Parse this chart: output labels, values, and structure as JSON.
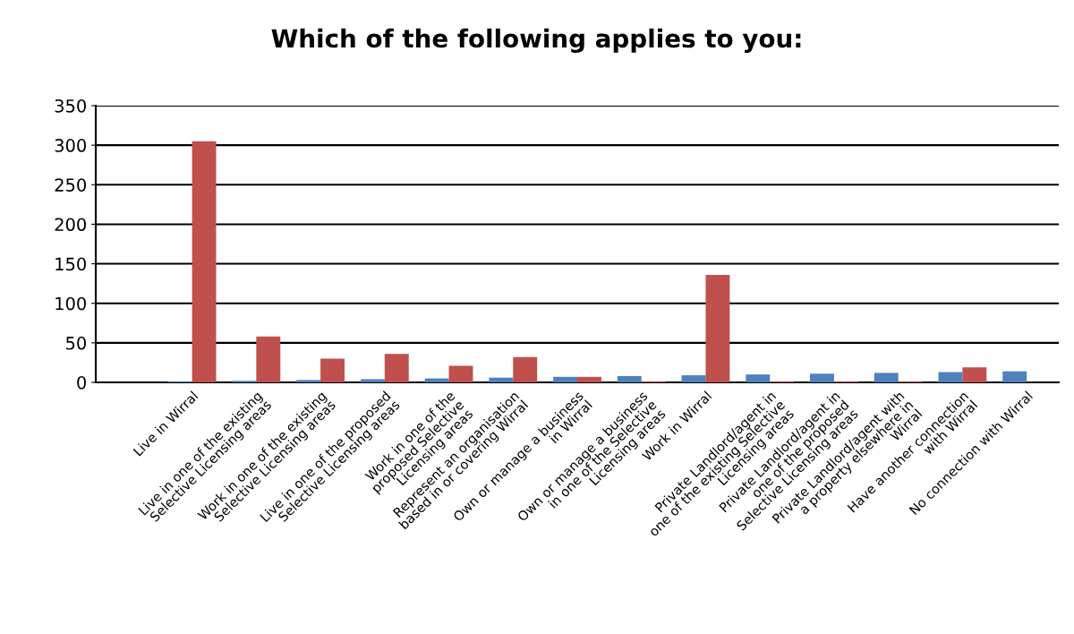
{
  "chart_data": {
    "type": "bar",
    "title": "Which of the following applies to you:",
    "categories": [
      null,
      "Live in Wirral",
      "Live in one of the existing\nSelective Licensing areas",
      "Work in one of the existing\nSelective Licensing areas",
      "Live in one of the proposed\nSelective Licensing areas",
      "Work in one of the\nproposed Selective\nLicensing areas",
      "Represent an organisation\nbased in or covering Wirral",
      "Own or manage a business\nin Wirral",
      "Own or manage a business\nin one of the Selective\nLicensing areas",
      "Work in Wirral",
      "Private Landlord/agent in\none of the existing Selective\nLicensing areas",
      "Private Landlord/agent in\none of the proposed\nSelective Licensing areas",
      "Private Landlord/agent with\na property elsewhere in\nWirral",
      "Have another connection\nwith Wirral",
      "No connection with Wirral"
    ],
    "series": [
      {
        "color": "#4f81bd",
        "values": [
          null,
          1,
          2,
          3,
          4,
          5,
          6,
          7,
          8,
          9,
          10,
          11,
          12,
          13,
          14
        ]
      },
      {
        "color": "#c0504d",
        "values": [
          null,
          305,
          58,
          30,
          36,
          21,
          32,
          7,
          1,
          136,
          1,
          1,
          1,
          19,
          null
        ]
      }
    ],
    "ylim": [
      0,
      350
    ],
    "yticks": [
      0,
      50,
      100,
      150,
      200,
      250,
      300,
      350
    ],
    "grid": "y"
  }
}
